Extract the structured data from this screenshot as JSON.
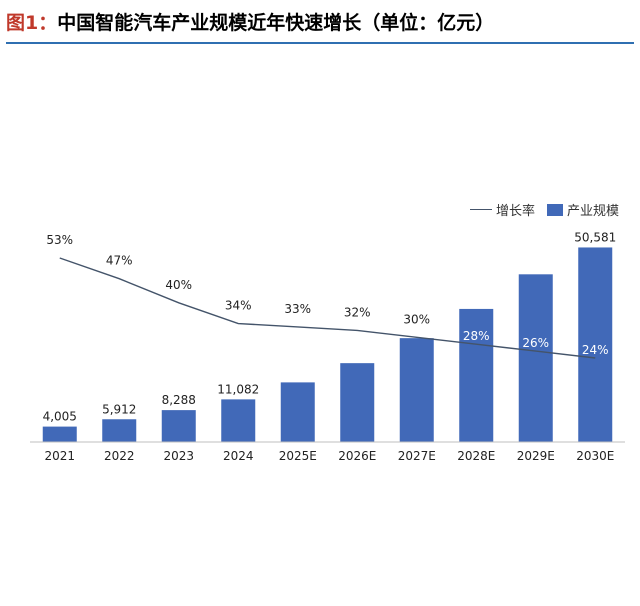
{
  "title": {
    "prefix": "图1：",
    "text": "中国智能汽车产业规模近年快速增长（单位：亿元）"
  },
  "colors": {
    "bar": "#4169b8",
    "line": "#44546a",
    "title_prefix": "#c0392b",
    "rule": "#2f6fb1"
  },
  "chart_data": {
    "type": "bar",
    "categories": [
      "2021",
      "2022",
      "2023",
      "2024",
      "2025E",
      "2026E",
      "2027E",
      "2028E",
      "2029E",
      "2030E"
    ],
    "series": [
      {
        "name": "产业规模",
        "type": "bar",
        "values": [
          4005,
          5912,
          8288,
          11082,
          15500,
          20500,
          27000,
          34600,
          43600,
          50581
        ],
        "labels": [
          "4,005",
          "5,912",
          "8,288",
          "11,082",
          "",
          "",
          "",
          "",
          "",
          "50,581"
        ]
      },
      {
        "name": "增长率",
        "type": "line",
        "values": [
          53,
          47,
          40,
          34,
          33,
          32,
          30,
          28,
          26,
          24
        ],
        "labels": [
          "53%",
          "47%",
          "40%",
          "34%",
          "33%",
          "32%",
          "30%",
          "28%",
          "26%",
          "24%"
        ]
      }
    ],
    "ylim": [
      0,
      52000
    ],
    "y2lim": [
      0,
      60
    ],
    "legend": {
      "position": "top-right",
      "items": [
        "增长率",
        "产业规模"
      ]
    }
  }
}
